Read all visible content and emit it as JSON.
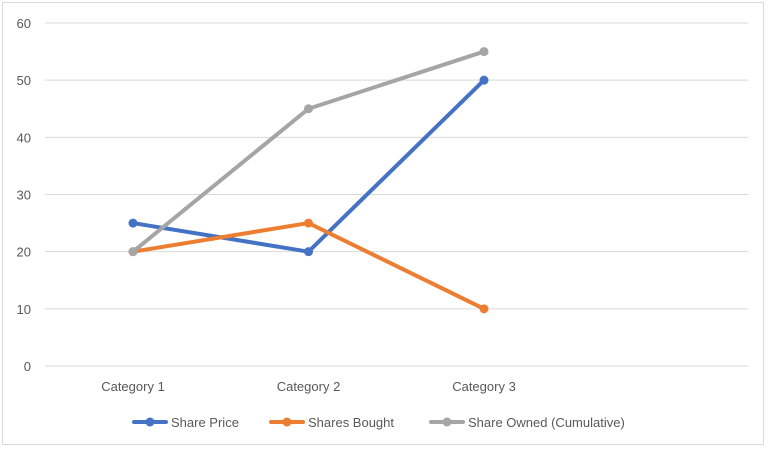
{
  "chart_data": {
    "type": "line",
    "categories": [
      "Category 1",
      "Category 2",
      "Category 3"
    ],
    "series": [
      {
        "name": "Share Price",
        "values": [
          25,
          20,
          50
        ],
        "color": "#4472c4"
      },
      {
        "name": "Shares Bought",
        "values": [
          20,
          25,
          10
        ],
        "color": "#ed7d31"
      },
      {
        "name": "Share Owned (Cumulative)",
        "values": [
          20,
          45,
          55
        ],
        "color": "#a5a5a5"
      }
    ],
    "yticks": [
      "0",
      "10",
      "20",
      "30",
      "40",
      "50",
      "60"
    ],
    "ylim": [
      0,
      60
    ],
    "grid": true,
    "legend_position": "bottom",
    "gridline_color": "#d9d9d9"
  }
}
